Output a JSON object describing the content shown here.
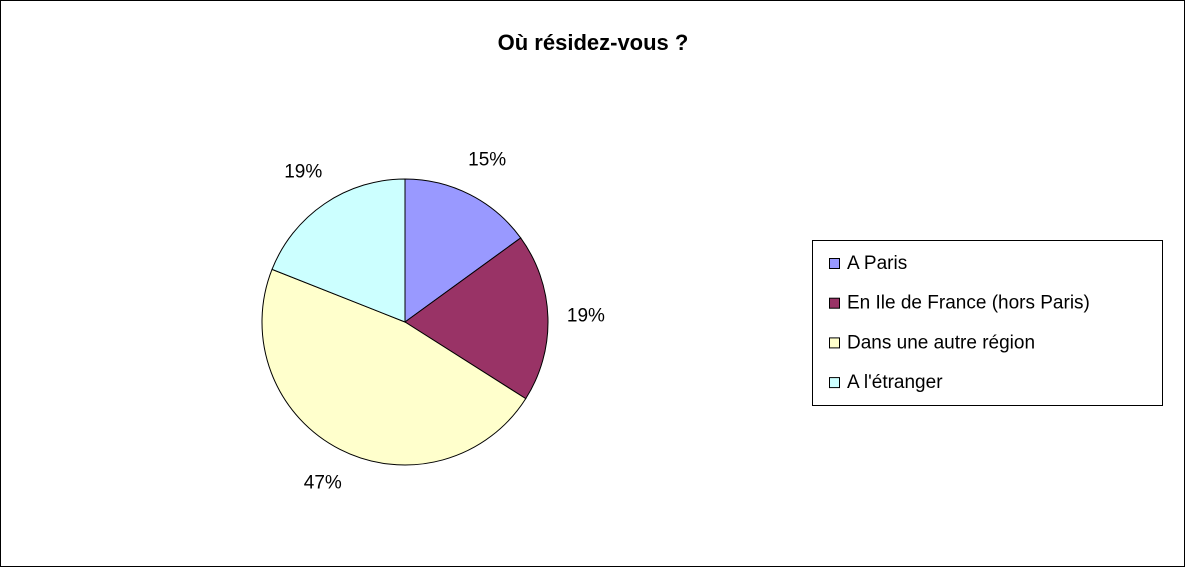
{
  "chart_data": {
    "type": "pie",
    "title": "Où résidez-vous ?",
    "categories": [
      "A Paris",
      "En Ile de France (hors Paris)",
      "Dans une autre région",
      "A l'étranger"
    ],
    "values": [
      15,
      19,
      47,
      19
    ],
    "value_labels": [
      "15%",
      "19%",
      "47%",
      "19%"
    ],
    "colors": [
      "#9999ff",
      "#993366",
      "#ffffcc",
      "#ccffff"
    ],
    "legend": "right"
  }
}
